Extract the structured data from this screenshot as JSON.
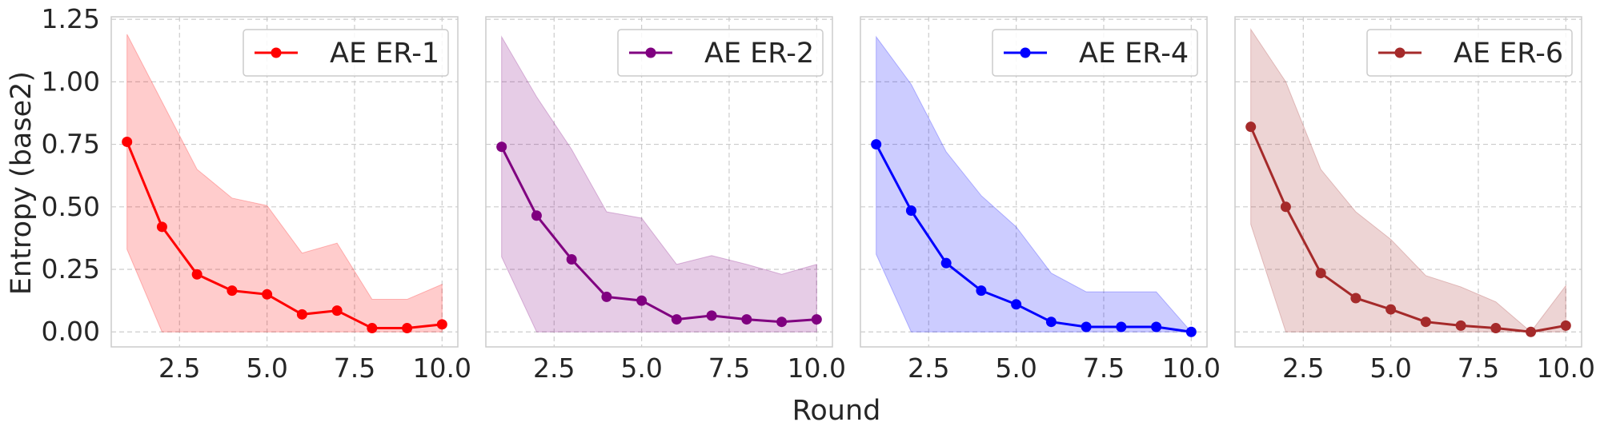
{
  "chart_data": {
    "type": "line",
    "shared_ylabel": "Entropy (base2)",
    "shared_xlabel": "Round",
    "xlim": [
      0.55,
      10.45
    ],
    "ylim": [
      -0.06,
      1.26
    ],
    "xticks": [
      "2.5",
      "5.0",
      "7.5",
      "10.0"
    ],
    "xtick_values": [
      2.5,
      5.0,
      7.5,
      10.0
    ],
    "yticks": [
      "0.00",
      "0.25",
      "0.50",
      "0.75",
      "1.00",
      "1.25"
    ],
    "ytick_values": [
      0.0,
      0.25,
      0.5,
      0.75,
      1.0,
      1.25
    ],
    "grid": true,
    "legend_position": "top-right",
    "panels": [
      {
        "name": "AE ER-1",
        "color": "#ff0000",
        "fill_color": "#ff0000",
        "x": [
          1,
          2,
          3,
          4,
          5,
          6,
          7,
          8,
          9,
          10
        ],
        "y": [
          0.76,
          0.42,
          0.23,
          0.165,
          0.15,
          0.07,
          0.085,
          0.015,
          0.015,
          0.03
        ],
        "upper": [
          1.19,
          0.92,
          0.65,
          0.535,
          0.505,
          0.315,
          0.355,
          0.13,
          0.13,
          0.19
        ],
        "lower": [
          0.33,
          0.0,
          0.0,
          0.0,
          0.0,
          0.0,
          0.0,
          0.0,
          0.0,
          0.0
        ]
      },
      {
        "name": "AE ER-2",
        "color": "#800080",
        "fill_color": "#800080",
        "x": [
          1,
          2,
          3,
          4,
          5,
          6,
          7,
          8,
          9,
          10
        ],
        "y": [
          0.74,
          0.465,
          0.29,
          0.14,
          0.125,
          0.05,
          0.065,
          0.05,
          0.04,
          0.05
        ],
        "upper": [
          1.18,
          0.94,
          0.73,
          0.48,
          0.455,
          0.27,
          0.305,
          0.27,
          0.23,
          0.27
        ],
        "lower": [
          0.3,
          0.0,
          0.0,
          0.0,
          0.0,
          0.0,
          0.0,
          0.0,
          0.0,
          0.0
        ]
      },
      {
        "name": "AE ER-4",
        "color": "#0000ff",
        "fill_color": "#0000ff",
        "x": [
          1,
          2,
          3,
          4,
          5,
          6,
          7,
          8,
          9,
          10
        ],
        "y": [
          0.75,
          0.485,
          0.275,
          0.165,
          0.11,
          0.04,
          0.02,
          0.02,
          0.02,
          0.0
        ],
        "upper": [
          1.18,
          0.99,
          0.72,
          0.545,
          0.42,
          0.235,
          0.16,
          0.16,
          0.16,
          0.0
        ],
        "lower": [
          0.31,
          0.0,
          0.0,
          0.0,
          0.0,
          0.0,
          0.0,
          0.0,
          0.0,
          0.0
        ]
      },
      {
        "name": "AE ER-6",
        "color": "#a52a2a",
        "fill_color": "#a52a2a",
        "x": [
          1,
          2,
          3,
          4,
          5,
          6,
          7,
          8,
          9,
          10
        ],
        "y": [
          0.82,
          0.5,
          0.235,
          0.135,
          0.09,
          0.04,
          0.025,
          0.015,
          0.0,
          0.025
        ],
        "upper": [
          1.21,
          1.0,
          0.65,
          0.48,
          0.37,
          0.225,
          0.18,
          0.12,
          0.0,
          0.185
        ],
        "lower": [
          0.43,
          0.0,
          0.0,
          0.0,
          0.0,
          0.0,
          0.0,
          0.0,
          0.0,
          0.0
        ]
      }
    ]
  }
}
